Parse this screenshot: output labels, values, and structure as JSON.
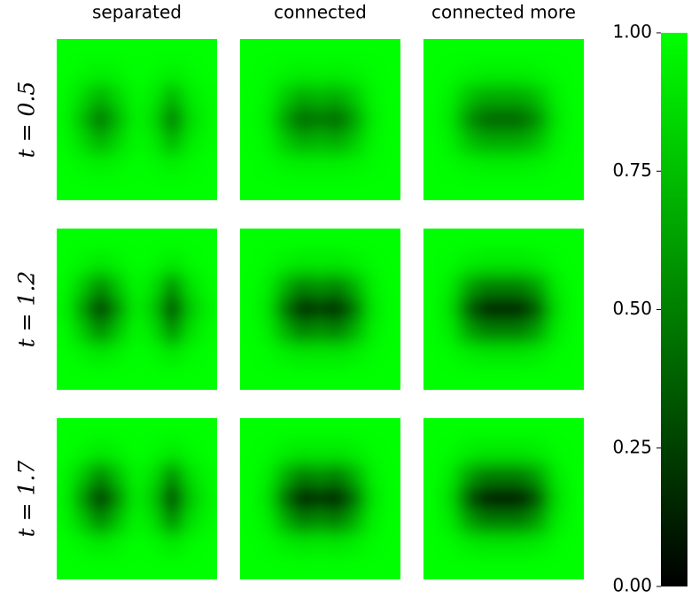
{
  "chart_data": {
    "type": "heatmap",
    "columns": [
      "separated",
      "connected",
      "connected more"
    ],
    "rows": [
      "t = 0.5",
      "t = 1.2",
      "t = 1.7"
    ],
    "color": "#00ff00",
    "panels": [
      [
        [
          [
            1,
            1,
            1,
            1,
            1,
            1,
            1,
            1,
            1
          ],
          [
            1,
            0.97,
            0.94,
            0.97,
            1,
            0.98,
            0.94,
            0.98,
            1
          ],
          [
            0.98,
            0.85,
            0.69,
            0.85,
            0.98,
            0.92,
            0.69,
            0.92,
            0.98
          ],
          [
            0.97,
            0.73,
            0.43,
            0.73,
            0.97,
            0.85,
            0.43,
            0.85,
            0.97
          ],
          [
            0.98,
            0.85,
            0.69,
            0.85,
            0.98,
            0.92,
            0.69,
            0.92,
            0.98
          ],
          [
            1,
            0.97,
            0.94,
            0.97,
            1,
            0.98,
            0.94,
            0.98,
            1
          ],
          [
            1,
            1,
            1,
            1,
            1,
            1,
            1,
            1,
            1
          ]
        ],
        [
          [
            1,
            1,
            1,
            1,
            1,
            1,
            1,
            1,
            1
          ],
          [
            1,
            0.99,
            0.96,
            0.94,
            0.95,
            0.94,
            0.96,
            0.99,
            1
          ],
          [
            1,
            0.97,
            0.8,
            0.67,
            0.72,
            0.67,
            0.8,
            0.97,
            1
          ],
          [
            1,
            0.94,
            0.64,
            0.4,
            0.49,
            0.4,
            0.64,
            0.94,
            1
          ],
          [
            1,
            0.97,
            0.8,
            0.67,
            0.72,
            0.67,
            0.8,
            0.97,
            1
          ],
          [
            1,
            0.99,
            0.96,
            0.94,
            0.95,
            0.94,
            0.96,
            0.99,
            1
          ],
          [
            1,
            1,
            1,
            1,
            1,
            1,
            1,
            1,
            1
          ]
        ],
        [
          [
            1,
            1,
            1,
            1,
            1,
            1,
            1,
            1,
            1
          ],
          [
            1,
            0.99,
            0.96,
            0.94,
            0.94,
            0.94,
            0.96,
            0.99,
            1
          ],
          [
            1,
            0.95,
            0.77,
            0.67,
            0.67,
            0.67,
            0.77,
            0.95,
            1
          ],
          [
            1,
            0.91,
            0.58,
            0.4,
            0.4,
            0.4,
            0.58,
            0.91,
            1
          ],
          [
            1,
            0.95,
            0.77,
            0.67,
            0.67,
            0.67,
            0.77,
            0.95,
            1
          ],
          [
            1,
            0.99,
            0.96,
            0.94,
            0.94,
            0.94,
            0.96,
            0.99,
            1
          ],
          [
            1,
            1,
            1,
            1,
            1,
            1,
            1,
            1,
            1
          ]
        ]
      ],
      [
        [
          [
            1,
            1,
            1,
            1,
            1,
            1,
            1,
            1,
            1
          ],
          [
            1,
            0.96,
            0.91,
            0.96,
            1,
            0.98,
            0.91,
            0.98,
            1
          ],
          [
            0.98,
            0.78,
            0.53,
            0.78,
            0.98,
            0.88,
            0.53,
            0.88,
            0.98
          ],
          [
            0.95,
            0.59,
            0.14,
            0.59,
            0.95,
            0.77,
            0.14,
            0.77,
            0.95
          ],
          [
            0.98,
            0.78,
            0.53,
            0.78,
            0.98,
            0.88,
            0.53,
            0.88,
            0.98
          ],
          [
            1,
            0.96,
            0.91,
            0.96,
            1,
            0.98,
            0.91,
            0.98,
            1
          ],
          [
            1,
            1,
            1,
            1,
            1,
            1,
            1,
            1,
            1
          ]
        ],
        [
          [
            1,
            1,
            1,
            1,
            1,
            1,
            1,
            1,
            1
          ],
          [
            1,
            0.99,
            0.95,
            0.91,
            0.92,
            0.91,
            0.95,
            0.99,
            1
          ],
          [
            1,
            0.95,
            0.7,
            0.5,
            0.58,
            0.5,
            0.7,
            0.95,
            1
          ],
          [
            1,
            0.91,
            0.46,
            0.1,
            0.24,
            0.1,
            0.46,
            0.91,
            1
          ],
          [
            1,
            0.95,
            0.7,
            0.5,
            0.58,
            0.5,
            0.7,
            0.95,
            1
          ],
          [
            1,
            0.99,
            0.95,
            0.91,
            0.92,
            0.91,
            0.95,
            0.99,
            1
          ],
          [
            1,
            1,
            1,
            1,
            1,
            1,
            1,
            1,
            1
          ]
        ],
        [
          [
            1,
            1,
            1,
            1,
            1,
            1,
            1,
            1,
            1
          ],
          [
            1,
            0.99,
            0.94,
            0.91,
            0.91,
            0.91,
            0.94,
            0.99,
            1
          ],
          [
            1,
            0.93,
            0.65,
            0.5,
            0.5,
            0.5,
            0.65,
            0.93,
            1
          ],
          [
            1,
            0.87,
            0.37,
            0.1,
            0.1,
            0.1,
            0.37,
            0.87,
            1
          ],
          [
            1,
            0.93,
            0.65,
            0.5,
            0.5,
            0.5,
            0.65,
            0.93,
            1
          ],
          [
            1,
            0.99,
            0.94,
            0.91,
            0.91,
            0.91,
            0.94,
            0.99,
            1
          ],
          [
            1,
            1,
            1,
            1,
            1,
            1,
            1,
            1,
            1
          ]
        ]
      ],
      [
        [
          [
            1,
            1,
            1,
            1,
            1,
            1,
            1,
            1,
            1
          ],
          [
            1,
            0.96,
            0.91,
            0.96,
            1,
            0.98,
            0.91,
            0.98,
            1
          ],
          [
            0.97,
            0.77,
            0.51,
            0.77,
            0.97,
            0.87,
            0.51,
            0.87,
            0.97
          ],
          [
            0.95,
            0.57,
            0.1,
            0.57,
            0.95,
            0.76,
            0.1,
            0.76,
            0.95
          ],
          [
            0.97,
            0.77,
            0.51,
            0.77,
            0.97,
            0.87,
            0.51,
            0.87,
            0.97
          ],
          [
            1,
            0.96,
            0.91,
            0.96,
            1,
            0.98,
            0.91,
            0.98,
            1
          ],
          [
            1,
            1,
            1,
            1,
            1,
            1,
            1,
            1,
            1
          ]
        ],
        [
          [
            1,
            1,
            1,
            1,
            1,
            1,
            1,
            1,
            1
          ],
          [
            1,
            0.99,
            0.94,
            0.9,
            0.92,
            0.9,
            0.94,
            0.99,
            1
          ],
          [
            1,
            0.95,
            0.69,
            0.48,
            0.56,
            0.48,
            0.69,
            0.95,
            1
          ],
          [
            1,
            0.9,
            0.43,
            0.05,
            0.19,
            0.05,
            0.43,
            0.9,
            1
          ],
          [
            1,
            0.95,
            0.69,
            0.48,
            0.56,
            0.48,
            0.69,
            0.95,
            1
          ],
          [
            1,
            0.99,
            0.94,
            0.9,
            0.92,
            0.9,
            0.94,
            0.99,
            1
          ],
          [
            1,
            1,
            1,
            1,
            1,
            1,
            1,
            1,
            1
          ]
        ],
        [
          [
            1,
            1,
            1,
            1,
            1,
            1,
            1,
            1,
            1
          ],
          [
            1,
            0.99,
            0.93,
            0.9,
            0.9,
            0.9,
            0.93,
            0.99,
            1
          ],
          [
            1,
            0.92,
            0.64,
            0.48,
            0.48,
            0.48,
            0.64,
            0.92,
            1
          ],
          [
            1,
            0.86,
            0.34,
            0.05,
            0.05,
            0.05,
            0.34,
            0.86,
            1
          ],
          [
            1,
            0.92,
            0.64,
            0.48,
            0.48,
            0.48,
            0.64,
            0.92,
            1
          ],
          [
            1,
            0.99,
            0.93,
            0.9,
            0.9,
            0.9,
            0.93,
            0.99,
            1
          ],
          [
            1,
            1,
            1,
            1,
            1,
            1,
            1,
            1,
            1
          ]
        ]
      ]
    ],
    "colorbar": {
      "ylim": [
        0,
        1
      ],
      "yticks": [
        {
          "value": 0,
          "label": "0.00"
        },
        {
          "value": 0.25,
          "label": "0.25"
        },
        {
          "value": 0.5,
          "label": "0.50"
        },
        {
          "value": 0.75,
          "label": "0.75"
        },
        {
          "value": 1,
          "label": "1.00"
        }
      ]
    }
  }
}
